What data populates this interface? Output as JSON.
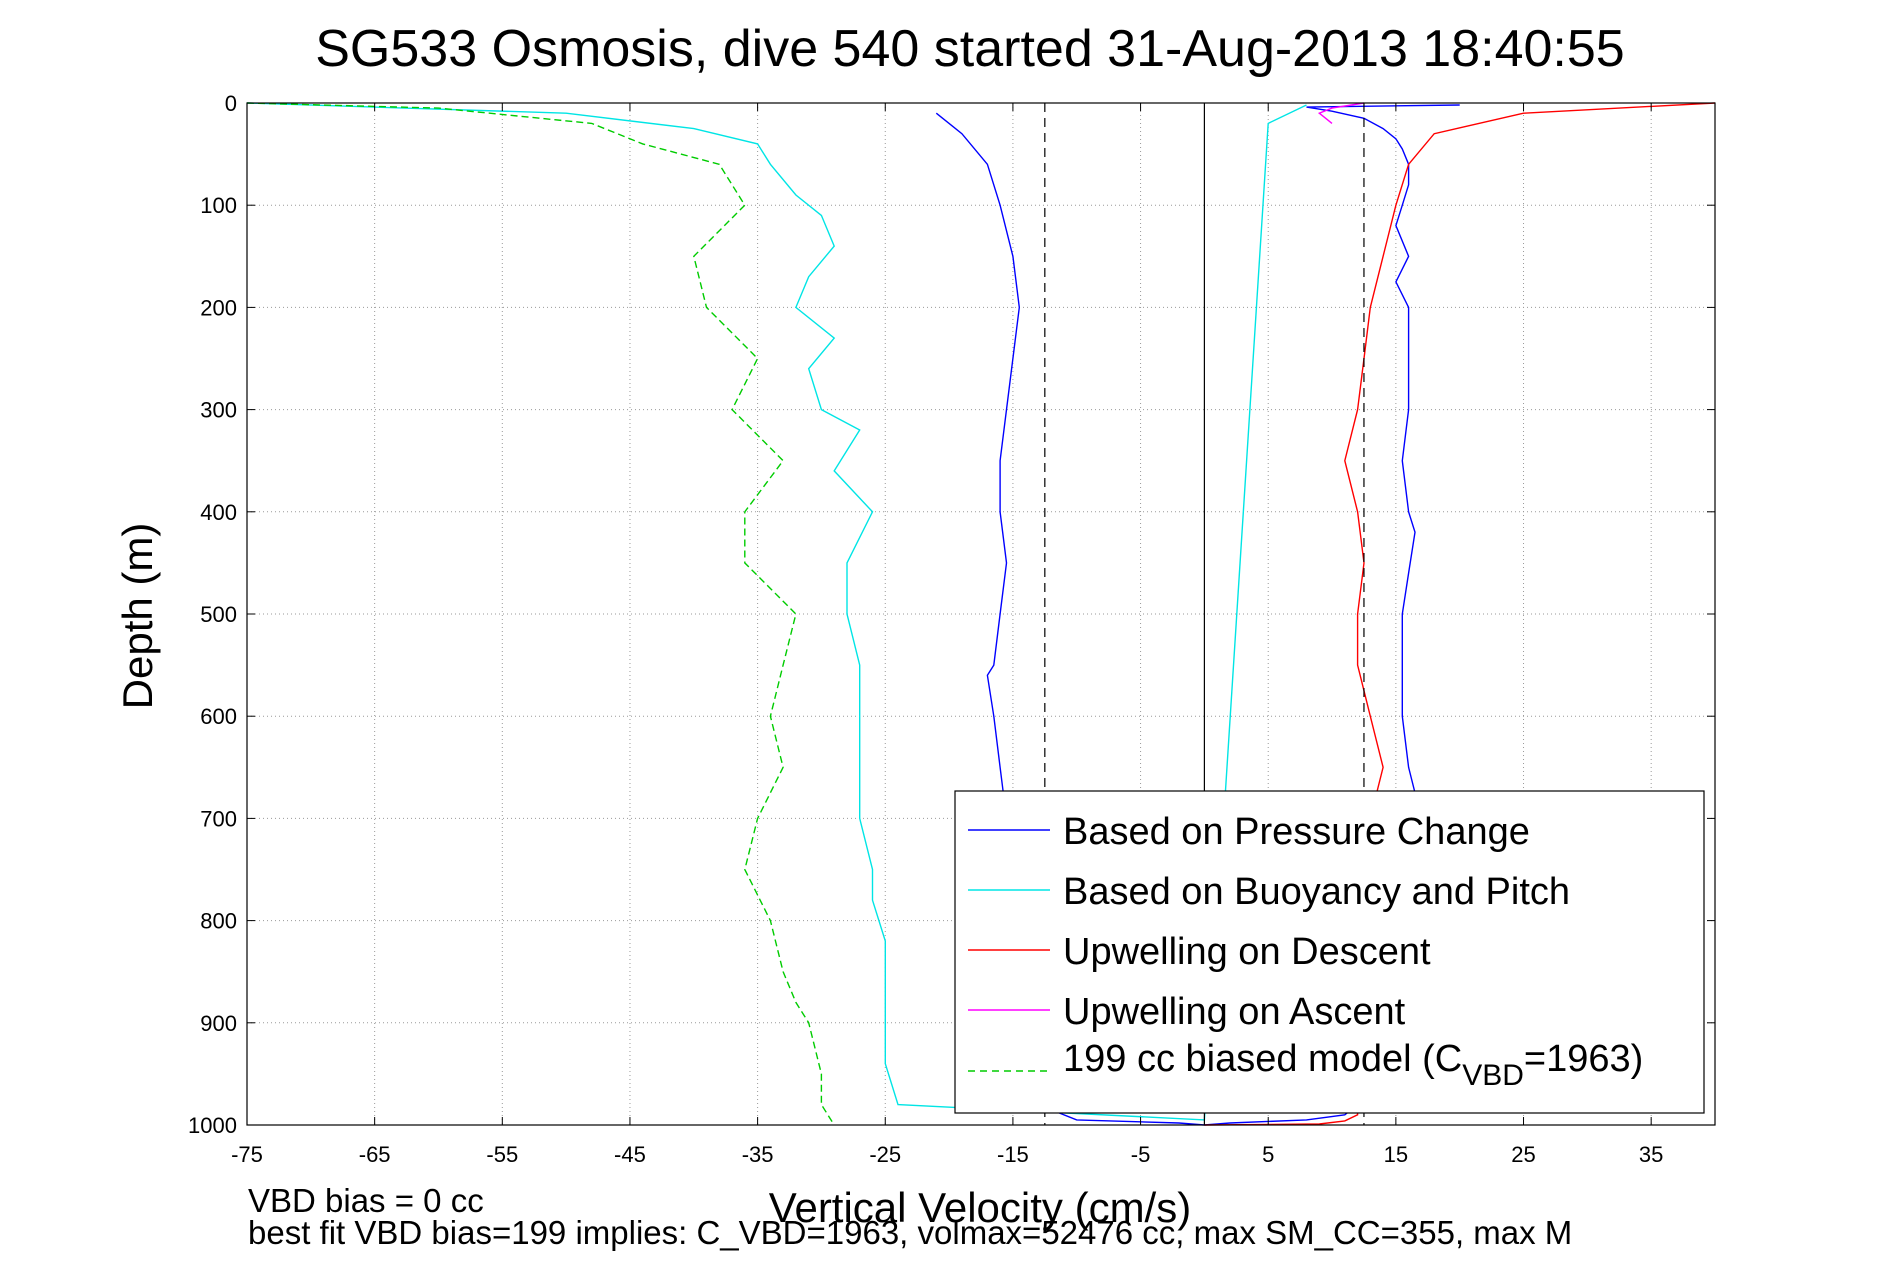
{
  "chart_data": {
    "type": "line",
    "title": "SG533 Osmosis, dive 540 started 31-Aug-2013 18:40:55",
    "xlabel": "Vertical Velocity (cm/s)",
    "ylabel": "Depth (m)",
    "xlim": [
      -75,
      40
    ],
    "ylim": [
      0,
      1000
    ],
    "y_reversed": true,
    "grid": true,
    "x_ticks": [
      -75,
      -65,
      -55,
      -45,
      -35,
      -25,
      -15,
      -5,
      5,
      15,
      25,
      35
    ],
    "y_ticks": [
      0,
      100,
      200,
      300,
      400,
      500,
      600,
      700,
      800,
      900,
      1000
    ],
    "legend_position": "bottom-right",
    "vertical_lines": [
      {
        "x": 0,
        "style": "solid",
        "color": "#000000"
      },
      {
        "x": -12.5,
        "style": "dashed",
        "color": "#000000"
      },
      {
        "x": 12.5,
        "style": "dashed",
        "color": "#000000"
      }
    ],
    "series": [
      {
        "name": "Based on Pressure Change",
        "color": "#0000ff",
        "style": "solid",
        "x": [
          -21,
          -19,
          -17,
          -16,
          -15,
          -14.5,
          -15,
          -15.5,
          -16,
          -16,
          -15.5,
          -16,
          -16.5,
          -17,
          -16.5,
          -16,
          -15.5,
          -15,
          -14.5,
          -15,
          -15,
          -14.5,
          -15,
          -13,
          -13,
          -10,
          -2,
          0,
          0,
          2,
          8,
          11,
          12,
          13.5,
          15,
          16,
          17,
          18,
          17,
          16,
          15.5,
          15.5,
          15.5,
          16,
          16.5,
          16,
          15.5,
          16,
          16,
          16,
          15,
          16,
          15,
          15.5,
          16,
          16,
          15.5,
          15,
          14,
          12.5,
          10,
          8,
          20
        ],
        "y": [
          10,
          30,
          60,
          100,
          150,
          200,
          250,
          300,
          350,
          400,
          450,
          500,
          550,
          560,
          600,
          650,
          700,
          750,
          800,
          850,
          880,
          900,
          930,
          950,
          980,
          995,
          998,
          1000,
          1000,
          998,
          995,
          990,
          980,
          940,
          900,
          850,
          780,
          750,
          700,
          650,
          600,
          560,
          500,
          460,
          420,
          400,
          350,
          300,
          250,
          200,
          175,
          150,
          120,
          100,
          80,
          60,
          45,
          35,
          25,
          15,
          8,
          4,
          2
        ]
      },
      {
        "name": "Based on Buoyancy and Pitch",
        "color": "#00e5e5",
        "style": "solid",
        "x": [
          -75,
          -50,
          -40,
          -35,
          -34,
          -32,
          -30,
          -29,
          -31,
          -32,
          -29,
          -31,
          -30,
          -27,
          -29,
          -26,
          -28,
          -28,
          -27,
          -27,
          -27,
          -27,
          -26,
          -26,
          -25,
          -25,
          -25,
          -25,
          -24,
          0,
          5,
          8
        ],
        "y": [
          0,
          10,
          25,
          40,
          60,
          90,
          110,
          140,
          170,
          200,
          230,
          260,
          300,
          320,
          360,
          400,
          450,
          500,
          550,
          600,
          650,
          700,
          750,
          780,
          820,
          860,
          900,
          940,
          980,
          995,
          20,
          2
        ]
      },
      {
        "name": "Upwelling on Descent",
        "color": "#ff0000",
        "style": "solid",
        "x": [
          40,
          25,
          18,
          16,
          15,
          14,
          13,
          12.5,
          12,
          11,
          12,
          12.5,
          12,
          12,
          13,
          14,
          13,
          12,
          12,
          12.5,
          12.5,
          12,
          12,
          12,
          12,
          11,
          9,
          0
        ],
        "y": [
          0,
          10,
          30,
          60,
          100,
          150,
          200,
          250,
          300,
          350,
          400,
          450,
          500,
          550,
          600,
          650,
          700,
          750,
          800,
          850,
          900,
          930,
          960,
          980,
          990,
          996,
          999,
          1000
        ]
      },
      {
        "name": "Upwelling on Ascent",
        "color": "#ff00ff",
        "style": "solid",
        "x": [
          12.5,
          10,
          9,
          9.5,
          10
        ],
        "y": [
          0,
          5,
          10,
          15,
          20
        ]
      },
      {
        "name": "199 cc biased model (C_VBD=1963)",
        "color": "#00cc00",
        "style": "dashed",
        "x": [
          -75,
          -60,
          -48,
          -44,
          -38,
          -36,
          -40,
          -39,
          -35,
          -37,
          -33,
          -36,
          -36,
          -32,
          -33,
          -34,
          -33,
          -35,
          -36,
          -34,
          -33,
          -32,
          -31,
          -30,
          -30,
          -29
        ],
        "y": [
          0,
          5,
          20,
          40,
          60,
          100,
          150,
          200,
          250,
          300,
          350,
          400,
          450,
          500,
          550,
          600,
          650,
          700,
          750,
          800,
          850,
          880,
          900,
          950,
          980,
          1000
        ]
      }
    ],
    "legend_entries": {
      "pressure": "Based on Pressure Change",
      "buoyancy": "Based on Buoyancy and Pitch",
      "descent": "Upwelling on Descent",
      "ascent": "Upwelling on Ascent",
      "model_prefix": "199 cc biased model (C",
      "model_sub": "VBD",
      "model_suffix": "=1963)"
    }
  },
  "footer": {
    "line1": "VBD bias = 0 cc",
    "line2": "best fit VBD bias=199 implies: C_VBD=1963, volmax=52476 cc, max SM_CC=355, max M"
  }
}
